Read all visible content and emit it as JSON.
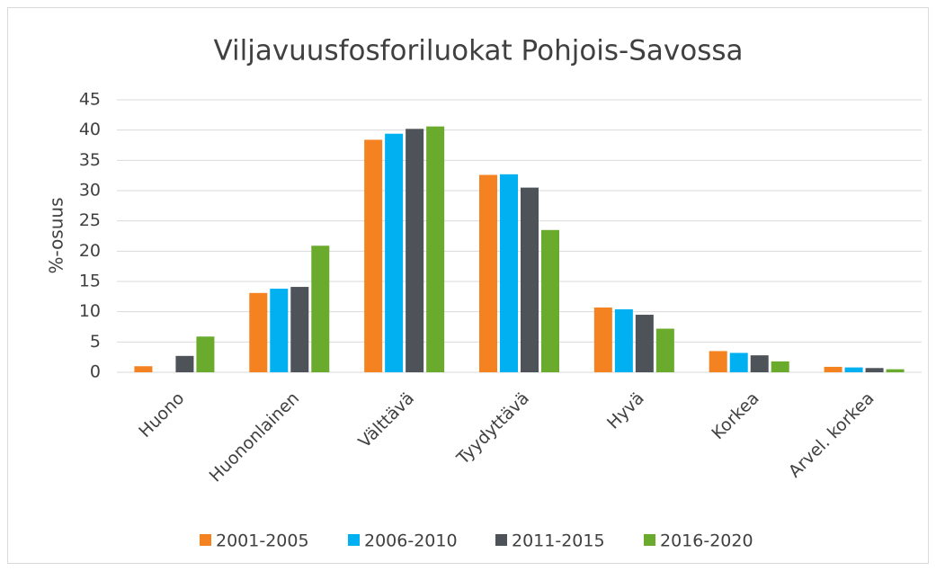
{
  "chart_data": {
    "type": "bar",
    "title": "Viljavuusfosforiluokat Pohjois-Savossa",
    "y_label": "%-osuus",
    "categories": [
      "Huono",
      "Huononlainen",
      "Välttävä",
      "Tyydyttävä",
      "Hyvä",
      "Korkea",
      "Arvel. korkea"
    ],
    "series": [
      {
        "name": "2001-2005",
        "color": "#f58220",
        "values": [
          1.0,
          13.1,
          38.4,
          32.6,
          10.7,
          3.5,
          0.9
        ]
      },
      {
        "name": "2006-2010",
        "color": "#00b0f0",
        "values": [
          0,
          13.8,
          39.4,
          32.7,
          10.4,
          3.2,
          0.8
        ]
      },
      {
        "name": "2011-2015",
        "color": "#4d5358",
        "values": [
          2.7,
          14.1,
          40.2,
          30.5,
          9.5,
          2.8,
          0.7
        ]
      },
      {
        "name": "2016-2020",
        "color": "#6aab2e",
        "values": [
          5.9,
          20.9,
          40.6,
          23.5,
          7.2,
          1.8,
          0.5
        ]
      }
    ],
    "ylim": [
      0,
      45
    ],
    "yticks": [
      0,
      5,
      10,
      15,
      20,
      25,
      30,
      35,
      40,
      45
    ],
    "grid": true,
    "legend": "bottom"
  }
}
